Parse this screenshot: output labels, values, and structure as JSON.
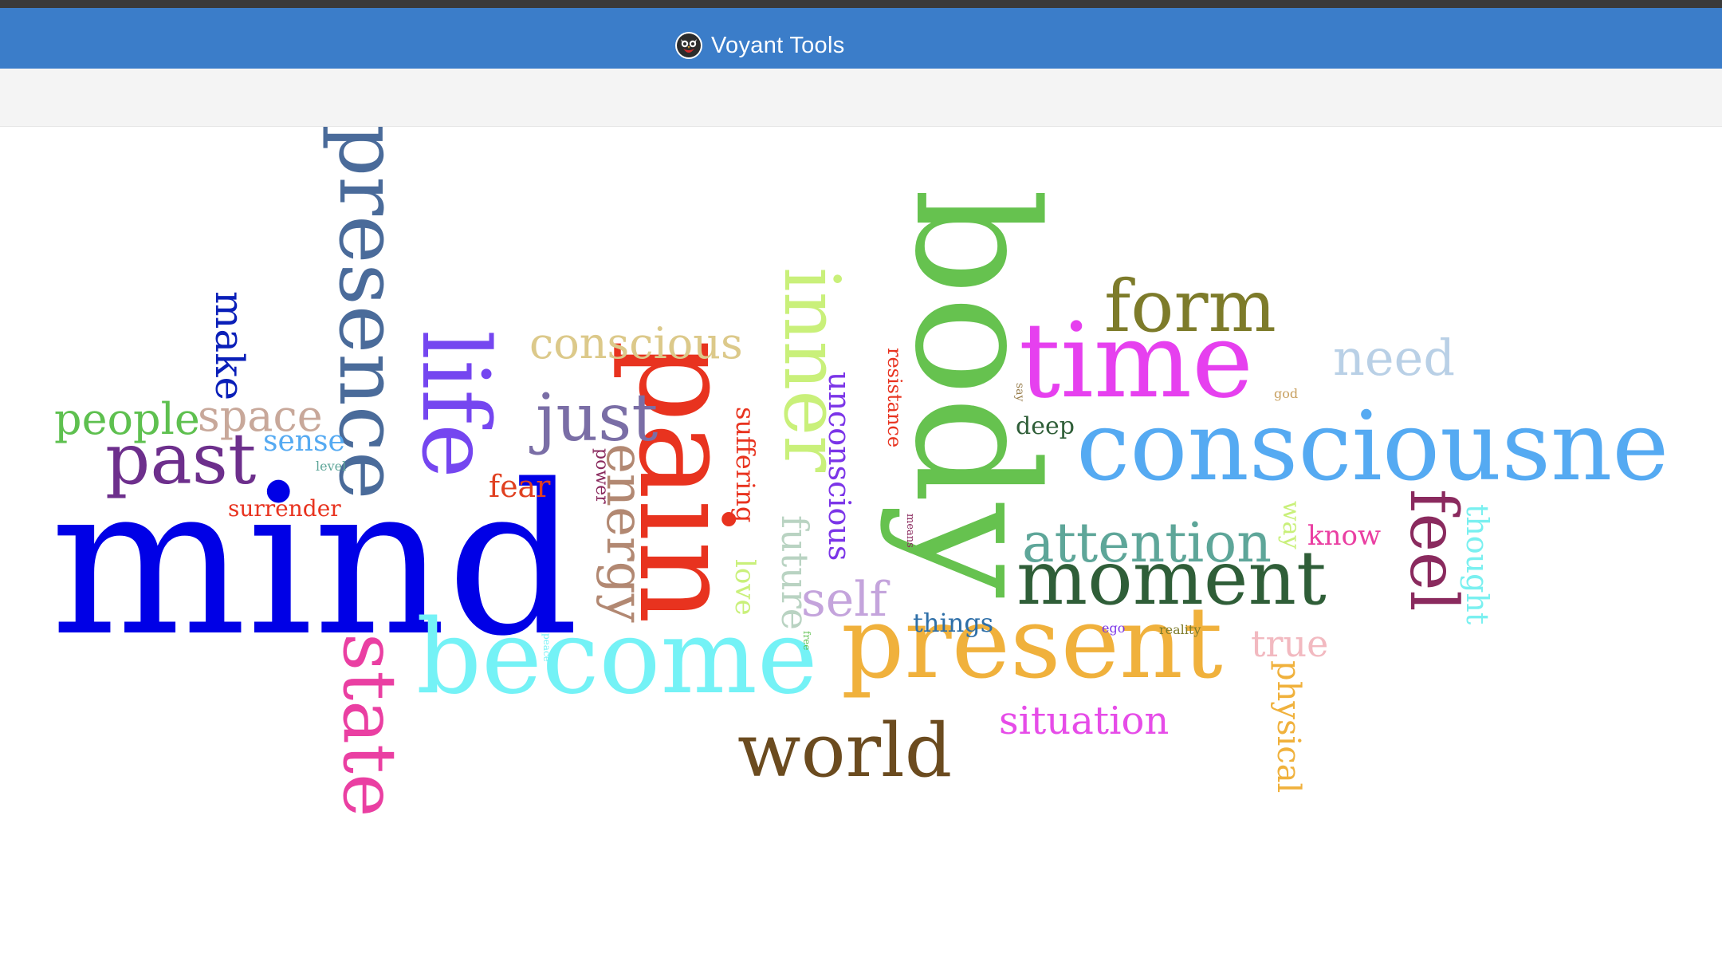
{
  "app": {
    "title": "Voyant Tools",
    "logo_icon": "voyant-owl-icon"
  },
  "cloud": {
    "words": [
      {
        "text": "mind",
        "color": "#0000e6"
      },
      {
        "text": "body",
        "color": "#66c24f"
      },
      {
        "text": "presence",
        "color": "#4a6b9a"
      },
      {
        "text": "consciousne",
        "color": "#55aaf2"
      },
      {
        "text": "pain",
        "color": "#e8331f"
      },
      {
        "text": "become",
        "color": "#74f2f6"
      },
      {
        "text": "present",
        "color": "#f0b13c"
      },
      {
        "text": "time",
        "color": "#e640ef"
      },
      {
        "text": "moment",
        "color": "#2f5e38"
      },
      {
        "text": "life",
        "color": "#7546f0"
      },
      {
        "text": "inner",
        "color": "#c9f07a"
      },
      {
        "text": "world",
        "color": "#6b4b1f"
      },
      {
        "text": "state",
        "color": "#ea3fa2"
      },
      {
        "text": "form",
        "color": "#7d7b2a"
      },
      {
        "text": "past",
        "color": "#6d2f8c"
      },
      {
        "text": "attention",
        "color": "#5ea699"
      },
      {
        "text": "feel",
        "color": "#8a2a5e"
      },
      {
        "text": "energy",
        "color": "#b28872"
      },
      {
        "text": "just",
        "color": "#7a6ea6"
      },
      {
        "text": "need",
        "color": "#b9d0e6"
      },
      {
        "text": "conscious",
        "color": "#dcc98a"
      },
      {
        "text": "people",
        "color": "#5ec04f"
      },
      {
        "text": "space",
        "color": "#c8a89a"
      },
      {
        "text": "make",
        "color": "#0a1fb8"
      },
      {
        "text": "self",
        "color": "#c4a4dc"
      },
      {
        "text": "situation",
        "color": "#e64ce8"
      },
      {
        "text": "future",
        "color": "#b9d3c2"
      },
      {
        "text": "unconscious",
        "color": "#7b35e8"
      },
      {
        "text": "physical",
        "color": "#f0b13c"
      },
      {
        "text": "thought",
        "color": "#7af0f0"
      },
      {
        "text": "fear",
        "color": "#e04020"
      },
      {
        "text": "sense",
        "color": "#55aaf2"
      },
      {
        "text": "true",
        "color": "#f2b9c0"
      },
      {
        "text": "suffering",
        "color": "#e8331f"
      },
      {
        "text": "love",
        "color": "#c9f07a"
      },
      {
        "text": "surrender",
        "color": "#e8331f"
      },
      {
        "text": "know",
        "color": "#ea3fa2"
      },
      {
        "text": "deep",
        "color": "#2f5e38"
      },
      {
        "text": "way",
        "color": "#c9f07a"
      },
      {
        "text": "things",
        "color": "#2e6fa8"
      },
      {
        "text": "resistance",
        "color": "#e8331f"
      },
      {
        "text": "power",
        "color": "#8a2a5e"
      },
      {
        "text": "level",
        "color": "#5ea699"
      },
      {
        "text": "god",
        "color": "#c8a060"
      },
      {
        "text": "say",
        "color": "#9a8050"
      },
      {
        "text": "ego",
        "color": "#7b35e8"
      },
      {
        "text": "reality",
        "color": "#7d7b2a"
      },
      {
        "text": "means",
        "color": "#8a2a5e"
      },
      {
        "text": "free",
        "color": "#5ec04f"
      },
      {
        "text": "peace",
        "color": "#74f2f6"
      }
    ]
  }
}
